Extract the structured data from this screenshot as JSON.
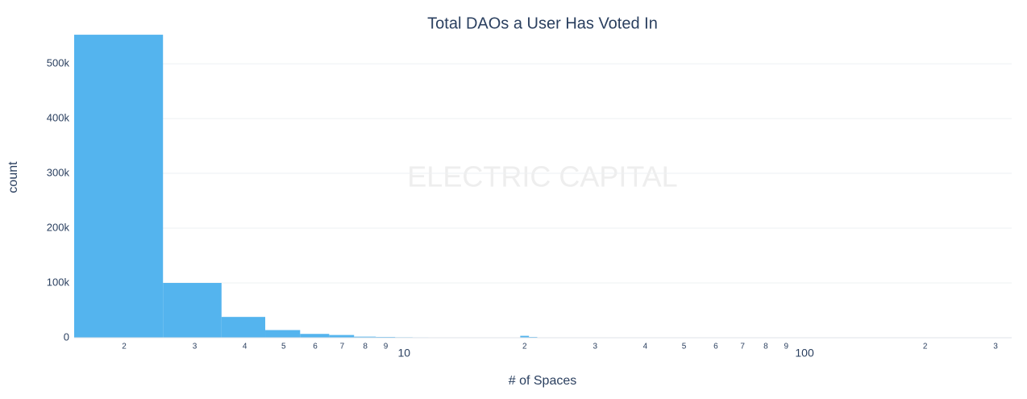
{
  "chart_data": {
    "type": "histogram",
    "title": "Total DAOs a User Has Voted In",
    "watermark": "ELECTRIC CAPITAL",
    "x_label": "# of Spaces",
    "y_label": "count",
    "color": "#54b4ee",
    "x_log": true,
    "grid": true,
    "bins": [
      1.5,
      2.5,
      3.5,
      4.5,
      5.5,
      6.5,
      7.5,
      8.5,
      9.5,
      10.5,
      11.5,
      12.5,
      13.5,
      14.5,
      15.5,
      16.5,
      17.5,
      18.5,
      19.5,
      20.5,
      21.5
    ],
    "counts": [
      553000,
      100000,
      38000,
      14000,
      7000,
      5000,
      2000,
      1500,
      1000,
      800,
      600,
      500,
      400,
      300,
      250,
      200,
      200,
      300,
      3500,
      1500
    ],
    "xlim": [
      1.5,
      329
    ],
    "xticks": [
      2,
      3,
      4,
      5,
      6,
      7,
      8,
      9,
      10,
      {
        "value": 20,
        "label": "2"
      },
      {
        "value": 30,
        "label": "3"
      },
      {
        "value": 40,
        "label": "4"
      },
      {
        "value": 50,
        "label": "5"
      },
      {
        "value": 60,
        "label": "6"
      },
      {
        "value": 70,
        "label": "7"
      },
      {
        "value": 80,
        "label": "8"
      },
      {
        "value": 90,
        "label": "9"
      },
      100,
      {
        "value": 200,
        "label": "2"
      },
      {
        "value": 300,
        "label": "3"
      }
    ],
    "ylim": [
      0,
      584000
    ],
    "yticks": [
      0,
      {
        "value": 100000,
        "label": "100k"
      },
      {
        "value": 200000,
        "label": "200k"
      },
      {
        "value": 300000,
        "label": "300k"
      },
      {
        "value": 400000,
        "label": "400k"
      },
      {
        "value": 500000,
        "label": "500k"
      }
    ]
  }
}
